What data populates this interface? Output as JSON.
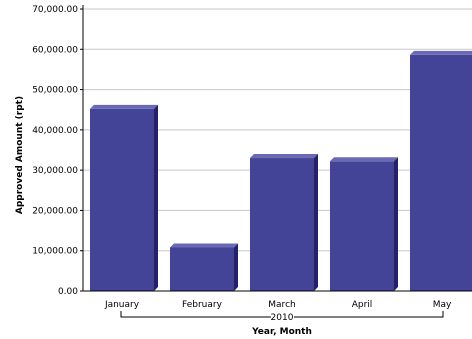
{
  "colors": {
    "bar_front": "#434397",
    "bar_top": "#6a6ab4",
    "bar_side": "#22226a",
    "grid": "#c8c8c8",
    "axis": "#000000"
  },
  "chart_data": {
    "type": "bar",
    "title": "",
    "ylabel": "Approved Amount (rpt)",
    "xlabel": "Year, Month",
    "group_label": "2010",
    "categories": [
      "January",
      "February",
      "March",
      "April",
      "May"
    ],
    "values": [
      45200,
      10800,
      33000,
      32200,
      58600
    ],
    "ylim": [
      0,
      70000
    ],
    "y_ticks": [
      0,
      10000,
      20000,
      30000,
      40000,
      50000,
      60000,
      70000
    ],
    "y_tick_labels": [
      "0.00",
      "10,000.00",
      "20,000.00",
      "30,000.00",
      "40,000.00",
      "50,000.00",
      "60,000.00",
      "70,000.00"
    ],
    "grid": true,
    "legend": "none"
  }
}
